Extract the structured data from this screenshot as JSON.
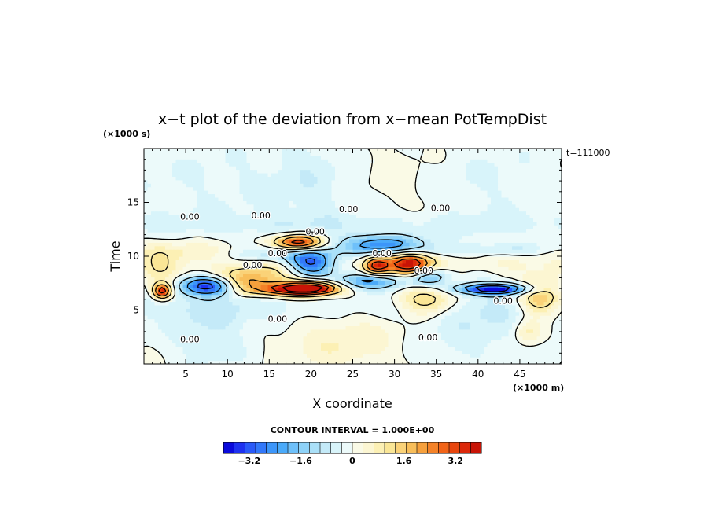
{
  "chart_data": {
    "type": "heatmap",
    "title": "x−t plot of the deviation from x−mean PotTempDist",
    "xlabel": "X coordinate",
    "ylabel": "Time",
    "x_unit": "(×1000 m)",
    "y_unit": "(×1000 s)",
    "time_label": "t=111000",
    "xlim": [
      0,
      50
    ],
    "ylim": [
      0,
      20
    ],
    "x_ticks": [
      5,
      10,
      15,
      20,
      25,
      30,
      35,
      40,
      45
    ],
    "y_ticks": [
      5,
      10,
      15
    ],
    "contour_interval_text": "CONTOUR INTERVAL = 1.000E+00",
    "colorbar": {
      "range": [
        -4,
        4
      ],
      "tick_values": [
        -3.2,
        -1.6,
        0,
        1.6,
        3.2
      ],
      "tick_labels": [
        "−3.2",
        "−1.6",
        "0",
        "1.6",
        "3.2"
      ],
      "colors": [
        "#0a0adc",
        "#1e32f0",
        "#2a5af8",
        "#3278fa",
        "#3c96fa",
        "#4aaafa",
        "#6ec0fa",
        "#8ed2f8",
        "#aae0f8",
        "#c4eaf8",
        "#d8f4fa",
        "#ecfafa",
        "#fafae6",
        "#fcf6d2",
        "#fcf0b4",
        "#fae696",
        "#fad278",
        "#f8be5a",
        "#f6a03c",
        "#f48228",
        "#f26418",
        "#e8460e",
        "#dc280a",
        "#c81406"
      ]
    },
    "contour_labels": [
      {
        "x": 5.5,
        "y": 2.0,
        "text": "0.00"
      },
      {
        "x": 5.5,
        "y": 13.4,
        "text": "0.00"
      },
      {
        "x": 14.0,
        "y": 13.5,
        "text": "0.00"
      },
      {
        "x": 24.5,
        "y": 14.1,
        "text": "0.00"
      },
      {
        "x": 35.5,
        "y": 14.2,
        "text": "0.00"
      },
      {
        "x": 20.5,
        "y": 12.0,
        "text": "0.00"
      },
      {
        "x": 16.0,
        "y": 10.0,
        "text": "0.00"
      },
      {
        "x": 13.0,
        "y": 8.9,
        "text": "0.00"
      },
      {
        "x": 28.5,
        "y": 10.0,
        "text": "0.00"
      },
      {
        "x": 33.5,
        "y": 8.4,
        "text": "0.00"
      },
      {
        "x": 43.0,
        "y": 5.6,
        "text": "0.00"
      },
      {
        "x": 16.0,
        "y": 3.9,
        "text": "0.00"
      },
      {
        "x": 34.0,
        "y": 2.2,
        "text": "0.00"
      }
    ],
    "features": [
      {
        "x": 13,
        "y": 5.5,
        "sx": 28,
        "sy": 1.2,
        "v": -0.5
      },
      {
        "x": 8,
        "y": 2.8,
        "sx": 3.5,
        "sy": 2.5,
        "v": -0.6
      },
      {
        "x": 40,
        "y": 3.8,
        "sx": 6,
        "sy": 3,
        "v": -0.55
      },
      {
        "x": 26,
        "y": 3.2,
        "sx": 5,
        "sy": 2.8,
        "v": 0.4
      },
      {
        "x": 22,
        "y": 1.8,
        "sx": 4,
        "sy": 1.5,
        "v": 0.35
      },
      {
        "x": 8,
        "y": 7.3,
        "sx": 2.5,
        "sy": 0.6,
        "v": -3.8
      },
      {
        "x": 2.2,
        "y": 6.8,
        "sx": 0.8,
        "sy": 0.5,
        "v": 3.8
      },
      {
        "x": 11.5,
        "y": 7.5,
        "sx": 2.2,
        "sy": 0.7,
        "v": 2.0
      },
      {
        "x": 17,
        "y": 8.3,
        "sx": 6,
        "sy": 1.1,
        "v": 1.4
      },
      {
        "x": 20.2,
        "y": 7.1,
        "sx": 2.4,
        "sy": 0.45,
        "v": 4.2
      },
      {
        "x": 17,
        "y": 6.9,
        "sx": 3,
        "sy": 0.4,
        "v": 2.4
      },
      {
        "x": 20,
        "y": 9.3,
        "sx": 2.0,
        "sy": 0.9,
        "v": -3.6
      },
      {
        "x": 18.5,
        "y": 11.3,
        "sx": 2.0,
        "sy": 0.5,
        "v": 3.9
      },
      {
        "x": 15,
        "y": 10.2,
        "sx": 3.5,
        "sy": 0.6,
        "v": -1.2
      },
      {
        "x": 28.5,
        "y": 11.2,
        "sx": 3.5,
        "sy": 0.6,
        "v": -2.3
      },
      {
        "x": 27.8,
        "y": 9.1,
        "sx": 1.1,
        "sy": 0.6,
        "v": 3.3
      },
      {
        "x": 31.8,
        "y": 9.3,
        "sx": 1.9,
        "sy": 0.75,
        "v": 4.0
      },
      {
        "x": 34,
        "y": 8.1,
        "sx": 1.6,
        "sy": 0.55,
        "v": -1.9
      },
      {
        "x": 27.5,
        "y": 7.7,
        "sx": 3,
        "sy": 0.5,
        "v": -1.8
      },
      {
        "x": 24,
        "y": 7.8,
        "sx": 4,
        "sy": 0.8,
        "v": -1.1
      },
      {
        "x": 34,
        "y": 6.0,
        "sx": 2.5,
        "sy": 1.0,
        "v": 1.8
      },
      {
        "x": 42,
        "y": 7.0,
        "sx": 3.2,
        "sy": 0.35,
        "v": -3.6
      },
      {
        "x": 47.5,
        "y": 6.2,
        "sx": 1.8,
        "sy": 1.1,
        "v": 2.1
      },
      {
        "x": 46,
        "y": 3.0,
        "sx": 1.2,
        "sy": 0.9,
        "v": 1.0
      },
      {
        "x": 30,
        "y": 10.5,
        "sx": 10,
        "sy": 0.5,
        "v": -0.7
      },
      {
        "x": 8,
        "y": 10.5,
        "sx": 7,
        "sy": 0.6,
        "v": 0.6
      },
      {
        "x": 2,
        "y": 9.0,
        "sx": 2,
        "sy": 1.2,
        "v": 1.0
      },
      {
        "x": 44,
        "y": 9.5,
        "sx": 6,
        "sy": 1,
        "v": 0.5
      },
      {
        "x": 25,
        "y": 13.0,
        "sx": 30,
        "sy": 0.8,
        "v": -0.45
      },
      {
        "x": 10,
        "y": 17.0,
        "sx": 12,
        "sy": 3,
        "v": -0.35
      },
      {
        "x": 20,
        "y": 17.0,
        "sx": 3,
        "sy": 3,
        "v": -0.35
      },
      {
        "x": 42,
        "y": 17.0,
        "sx": 6,
        "sy": 3,
        "v": -0.35
      },
      {
        "x": 30,
        "y": 17.0,
        "sx": 4,
        "sy": 3,
        "v": 0.25
      },
      {
        "x": 44,
        "y": 10.8,
        "sx": 3,
        "sy": 0.4,
        "v": -0.6
      }
    ]
  }
}
